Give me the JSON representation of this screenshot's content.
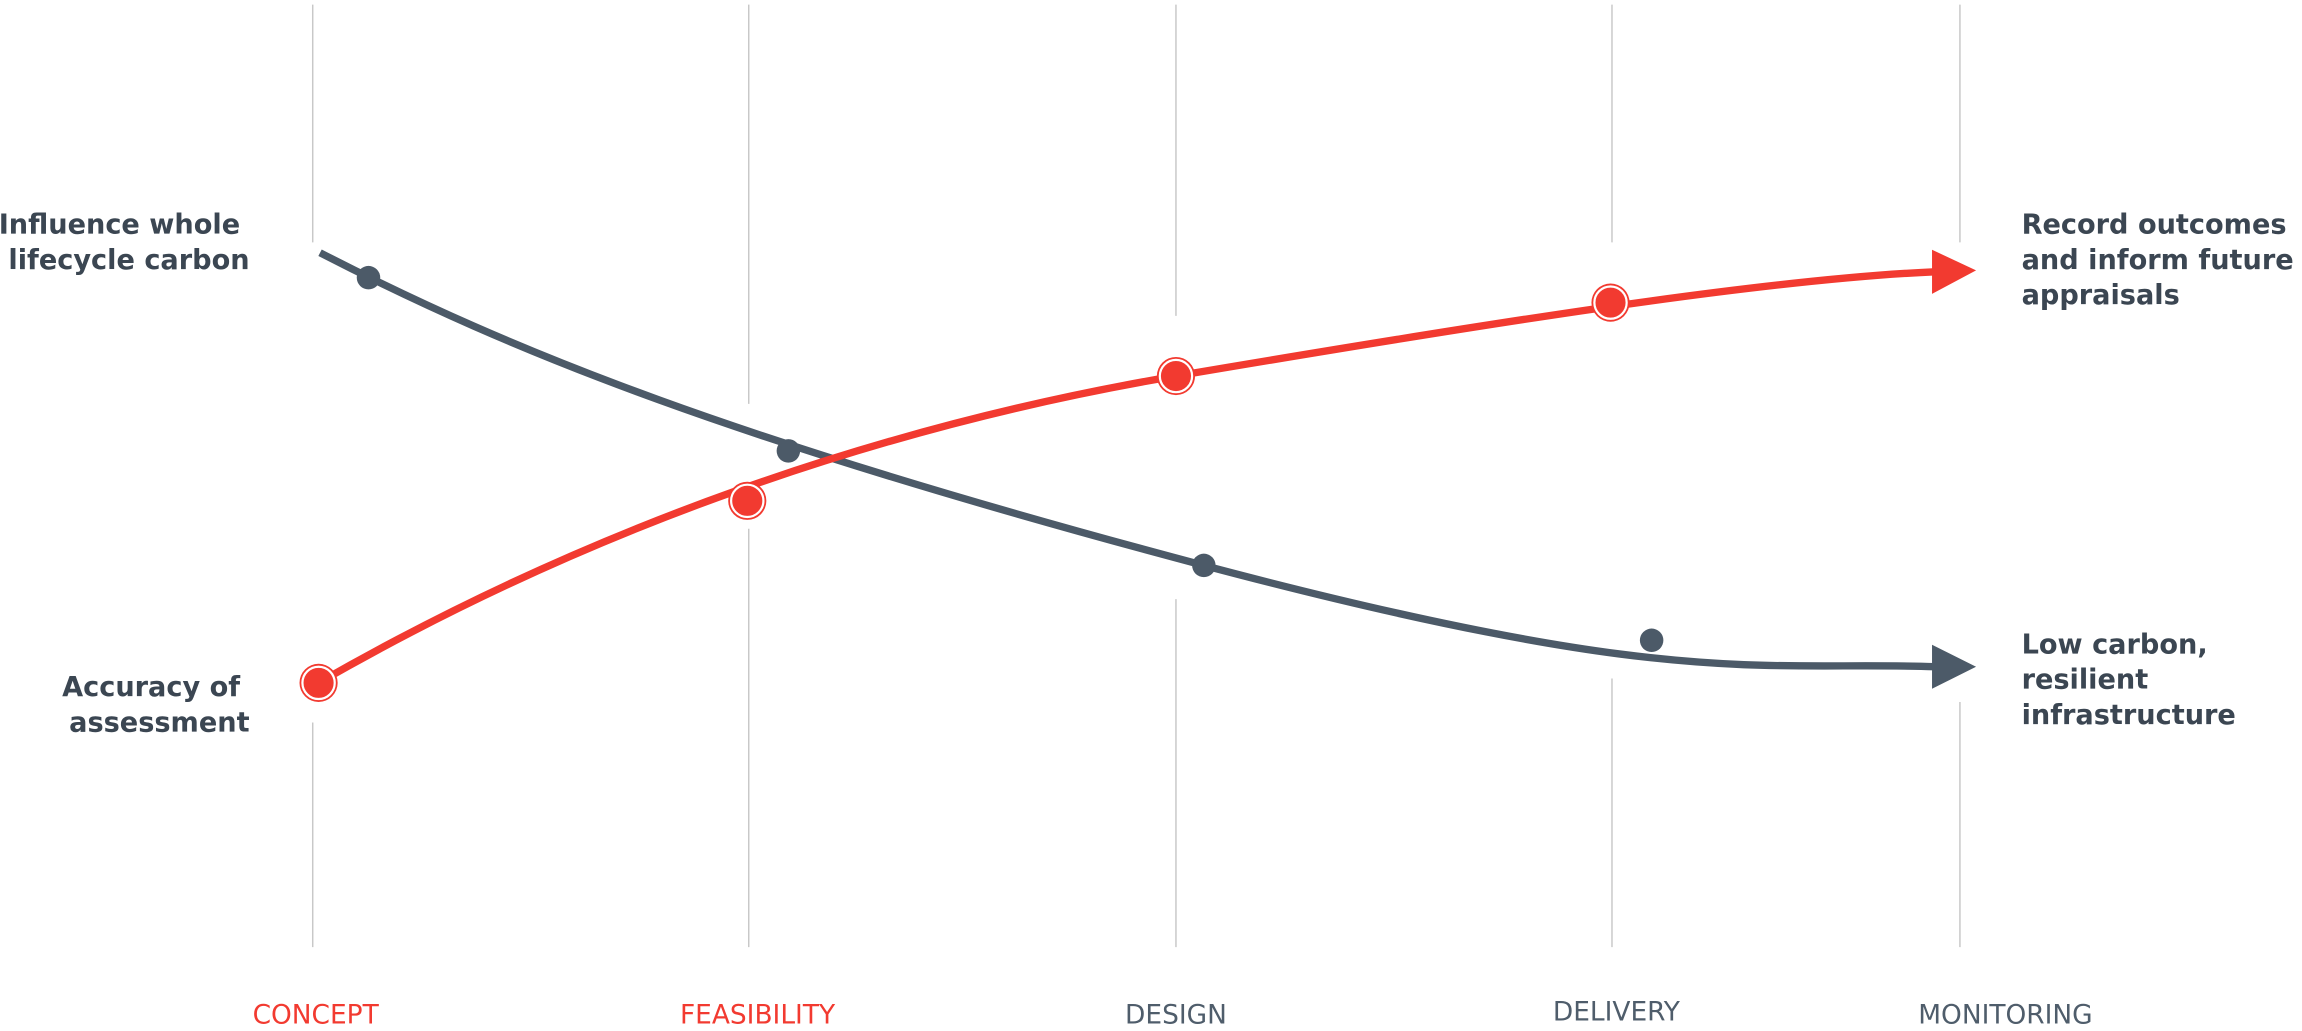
{
  "stages": [
    {
      "label": "CONCEPT",
      "color": "#f23a30"
    },
    {
      "label": "FEASIBILITY",
      "color": "#f23a30"
    },
    {
      "label": "DESIGN",
      "color": "#4f5d6b"
    },
    {
      "label": "DELIVERY",
      "color": "#4f5d6b"
    },
    {
      "label": "MONITORING",
      "color": "#4f5d6b"
    }
  ],
  "left_labels": {
    "top": [
      "Influence whole",
      "lifecycle carbon"
    ],
    "bottom": [
      "Accuracy of",
      "assessment"
    ]
  },
  "right_labels": {
    "top": [
      "Record outcomes",
      "and inform future",
      "appraisals"
    ],
    "bottom": [
      "Low carbon,",
      "resilient",
      "infrastructure"
    ]
  }
}
